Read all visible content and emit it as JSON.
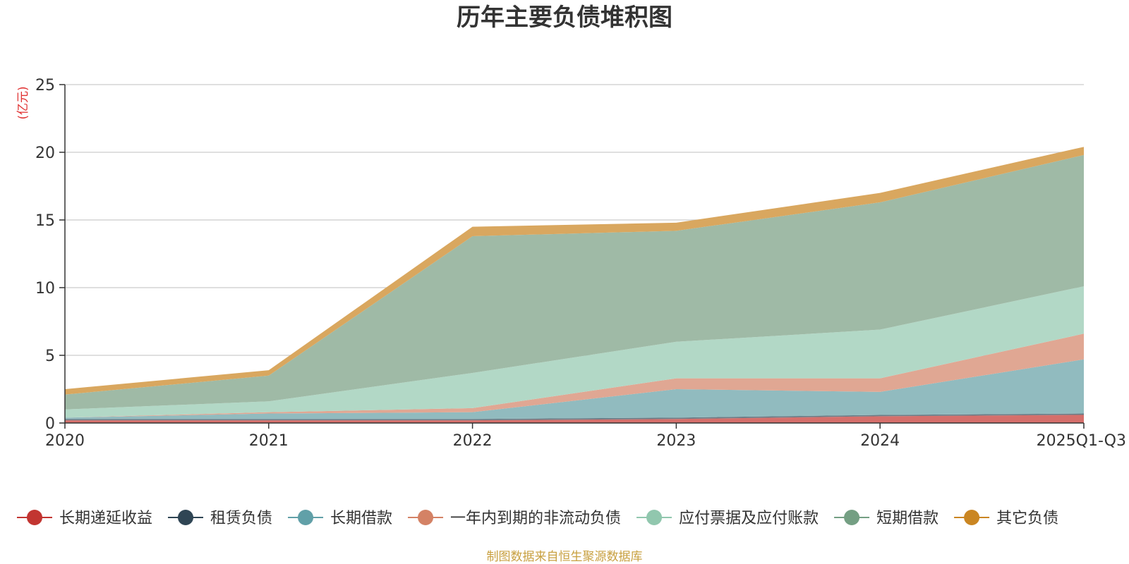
{
  "chart_data": {
    "type": "area",
    "stacked": true,
    "title": "历年主要负债堆积图",
    "unit_label": "(亿元)",
    "categories": [
      "2020",
      "2021",
      "2022",
      "2023",
      "2024",
      "2025Q1-Q3"
    ],
    "y_ticks": [
      "0",
      "5",
      "10",
      "15",
      "20",
      "25"
    ],
    "ylim": [
      0,
      25
    ],
    "grid": true,
    "legend_position": "bottom",
    "series": [
      {
        "name": "长期递延收益",
        "color": "#c23531",
        "fill": "#d56f6b",
        "values": [
          0.2,
          0.2,
          0.2,
          0.3,
          0.5,
          0.6
        ]
      },
      {
        "name": "租赁负债",
        "color": "#2f4554",
        "fill": "#6d7c86",
        "values": [
          0.1,
          0.1,
          0.1,
          0.1,
          0.1,
          0.1
        ]
      },
      {
        "name": "长期借款",
        "color": "#61a0a8",
        "fill": "#91bbbf",
        "values": [
          0.1,
          0.4,
          0.5,
          2.1,
          1.7,
          4.0
        ]
      },
      {
        "name": "一年内到期的非流动负债",
        "color": "#d48265",
        "fill": "#e0a793",
        "values": [
          0.0,
          0.1,
          0.3,
          0.8,
          1.0,
          1.9
        ]
      },
      {
        "name": "应付票据及应付账款",
        "color": "#91c7ae",
        "fill": "#b2d8c6",
        "values": [
          0.6,
          0.8,
          2.6,
          2.7,
          3.6,
          3.5
        ]
      },
      {
        "name": "短期借款",
        "color": "#749f83",
        "fill": "#9fbaa6",
        "values": [
          1.1,
          1.9,
          10.1,
          8.2,
          9.4,
          9.7
        ]
      },
      {
        "name": "其它负债",
        "color": "#ca8622",
        "fill": "#d9a75f",
        "values": [
          0.4,
          0.4,
          0.7,
          0.6,
          0.7,
          0.6
        ]
      }
    ]
  },
  "footer": {
    "source": "制图数据来自恒生聚源数据库",
    "source_color": "#c8a040",
    "unit_color": "#e03030"
  }
}
